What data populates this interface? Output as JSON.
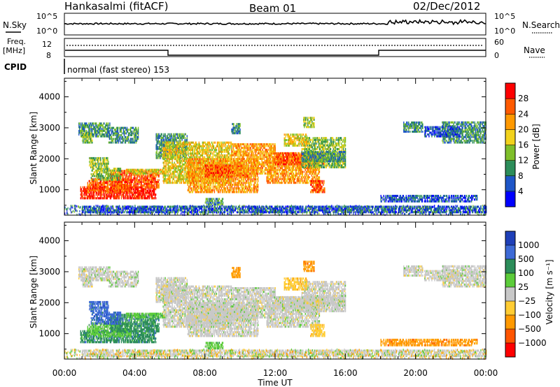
{
  "header": {
    "station": "Hankasalmi (fitACF)",
    "beam": "Beam 01",
    "date": "02/Dec/2012"
  },
  "noise_panel": {
    "left_label": "N.Sky",
    "right_label": "N.Search",
    "top_tick": "10^5",
    "bottom_tick": "10^0"
  },
  "freq_panel": {
    "left_label_1": "Freq.",
    "left_label_2": "[MHz]",
    "left_ticks": [
      "12",
      "8"
    ],
    "right_label": "Nave",
    "right_ticks": [
      "60",
      "0"
    ]
  },
  "cpid": {
    "label": "CPID",
    "mode": "normal (fast stereo) 153"
  },
  "chart_data": [
    {
      "type": "heatmap",
      "name": "power-panel",
      "ylabel": "Slant Range [km]",
      "ylim": [
        180,
        4600
      ],
      "yticks": [
        "1000",
        "2000",
        "3000",
        "4000"
      ],
      "colorbar": {
        "label": "Power [dB]",
        "ticks": [
          "4",
          "8",
          "12",
          "16",
          "20",
          "24",
          "28"
        ],
        "colors": [
          "#0000ff",
          "#1e56c8",
          "#2c8d5a",
          "#7fbf2a",
          "#f2d21c",
          "#ff9900",
          "#ff5a00",
          "#ff0000"
        ]
      }
    },
    {
      "type": "heatmap",
      "name": "velocity-panel",
      "ylabel": "Slant Range [km]",
      "ylim": [
        180,
        4600
      ],
      "yticks": [
        "1000",
        "2000",
        "3000",
        "4000"
      ],
      "colorbar": {
        "label": "Velocity [m s⁻¹]",
        "ticks": [
          "1000",
          "500",
          "100",
          "25",
          "−25",
          "−100",
          "−500",
          "−1000"
        ],
        "colors": [
          "#1e3fb8",
          "#3d6ad6",
          "#2c8d5a",
          "#5ccc3a",
          "#c8c8c8",
          "#ffcc33",
          "#ff9900",
          "#ff5500",
          "#ff0000"
        ]
      }
    }
  ],
  "xaxis": {
    "label": "Time UT",
    "ticks": [
      "00:00",
      "04:00",
      "08:00",
      "12:00",
      "16:00",
      "20:00",
      "00:00"
    ]
  }
}
